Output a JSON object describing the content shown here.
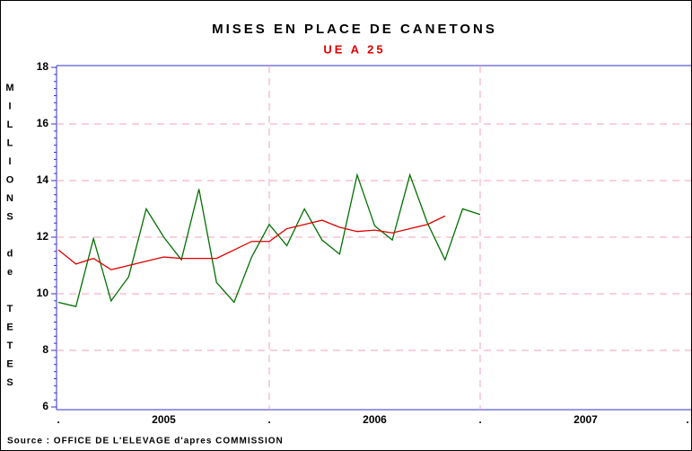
{
  "chart_data": {
    "type": "line",
    "title": "MISES EN PLACE DE CANETONS",
    "subtitle": "UE A 25",
    "y_label": "MILLIONS de TETES",
    "source": "Source : OFFICE DE L'ELEVAGE d'apres COMMISSION",
    "x": [
      0,
      1,
      2,
      3,
      4,
      5,
      6,
      7,
      8,
      9,
      10,
      11,
      12,
      13,
      14,
      15,
      16,
      17,
      18,
      19,
      20,
      21,
      22,
      23,
      24
    ],
    "xlim": [
      0,
      36
    ],
    "xticks": [
      {
        "value": 0,
        "label": "."
      },
      {
        "value": 6,
        "label": "2005"
      },
      {
        "value": 12,
        "label": "."
      },
      {
        "value": 18,
        "label": "2006"
      },
      {
        "value": 24,
        "label": "."
      },
      {
        "value": 30,
        "label": "2007"
      },
      {
        "value": 36,
        "label": "."
      }
    ],
    "ylim": [
      6,
      18
    ],
    "yticks": [
      6,
      8,
      10,
      12,
      14,
      16,
      18
    ],
    "grid": true,
    "series": [
      {
        "color": "#007000",
        "values": [
          9.7,
          9.55,
          11.95,
          9.75,
          10.6,
          13.0,
          12.0,
          11.2,
          13.7,
          10.4,
          9.7,
          11.3,
          12.45,
          11.7,
          13.0,
          11.9,
          11.4,
          14.2,
          12.4,
          11.9,
          14.2,
          12.5,
          11.2,
          13.0,
          12.8
        ]
      },
      {
        "color": "#e00000",
        "values": [
          11.55,
          11.05,
          11.25,
          10.85,
          11.0,
          11.15,
          11.3,
          11.25,
          11.25,
          11.25,
          11.55,
          11.85,
          11.85,
          12.3,
          12.45,
          12.6,
          12.35,
          12.2,
          12.25,
          12.15,
          12.3,
          12.45,
          12.75,
          null,
          null
        ]
      }
    ]
  }
}
